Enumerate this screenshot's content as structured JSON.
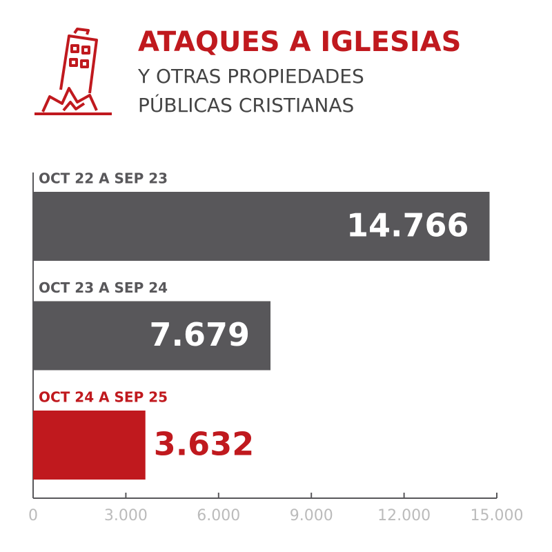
{
  "chart_data": {
    "type": "hbar",
    "title": "ATAQUES A IGLESIAS",
    "subtitle": [
      "Y OTRAS PROPIEDADES",
      "PÚBLICAS CRISTIANAS"
    ],
    "categories": [
      "OCT 22 A SEP 23",
      "OCT 23 A SEP 24",
      "OCT 24 A SEP 25"
    ],
    "values": [
      14766,
      7679,
      3632
    ],
    "value_labels": [
      "14.766",
      "7.679",
      "3.632"
    ],
    "colors": [
      "#58575a",
      "#58575a",
      "#c0191e"
    ],
    "xlim": [
      0,
      15000
    ],
    "xticks": [
      0,
      {
        "value": 3000,
        "label": "3.000"
      },
      {
        "value": 6000,
        "label": "6.000"
      },
      {
        "value": 9000,
        "label": "9.000"
      },
      {
        "value": 12000,
        "label": "12.000"
      },
      {
        "value": 15000,
        "label": "15.000"
      }
    ]
  }
}
